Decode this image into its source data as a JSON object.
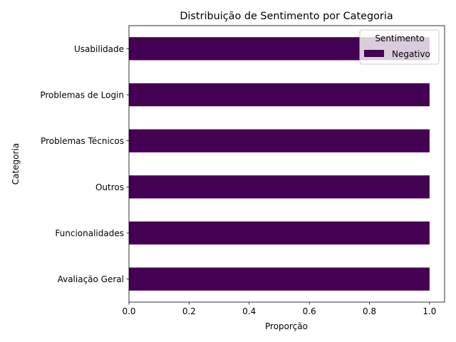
{
  "chart_data": {
    "type": "bar",
    "orientation": "horizontal",
    "stacked": true,
    "title": "Distribuição de Sentimento por Categoria",
    "xlabel": "Proporção",
    "ylabel": "Categoria",
    "xlim": [
      0.0,
      1.05
    ],
    "xticks": [
      "0.0",
      "0.2",
      "0.4",
      "0.6",
      "0.8",
      "1.0"
    ],
    "categories": [
      "Avaliação Geral",
      "Funcionalidades",
      "Outros",
      "Problemas Técnicos",
      "Problemas de Login",
      "Usabilidade"
    ],
    "series": [
      {
        "name": "Negativo",
        "color": "#440154",
        "values": [
          1.0,
          1.0,
          1.0,
          1.0,
          1.0,
          1.0
        ]
      }
    ],
    "legend": {
      "title": "Sentimento",
      "position": "top-right"
    },
    "grid": false
  }
}
